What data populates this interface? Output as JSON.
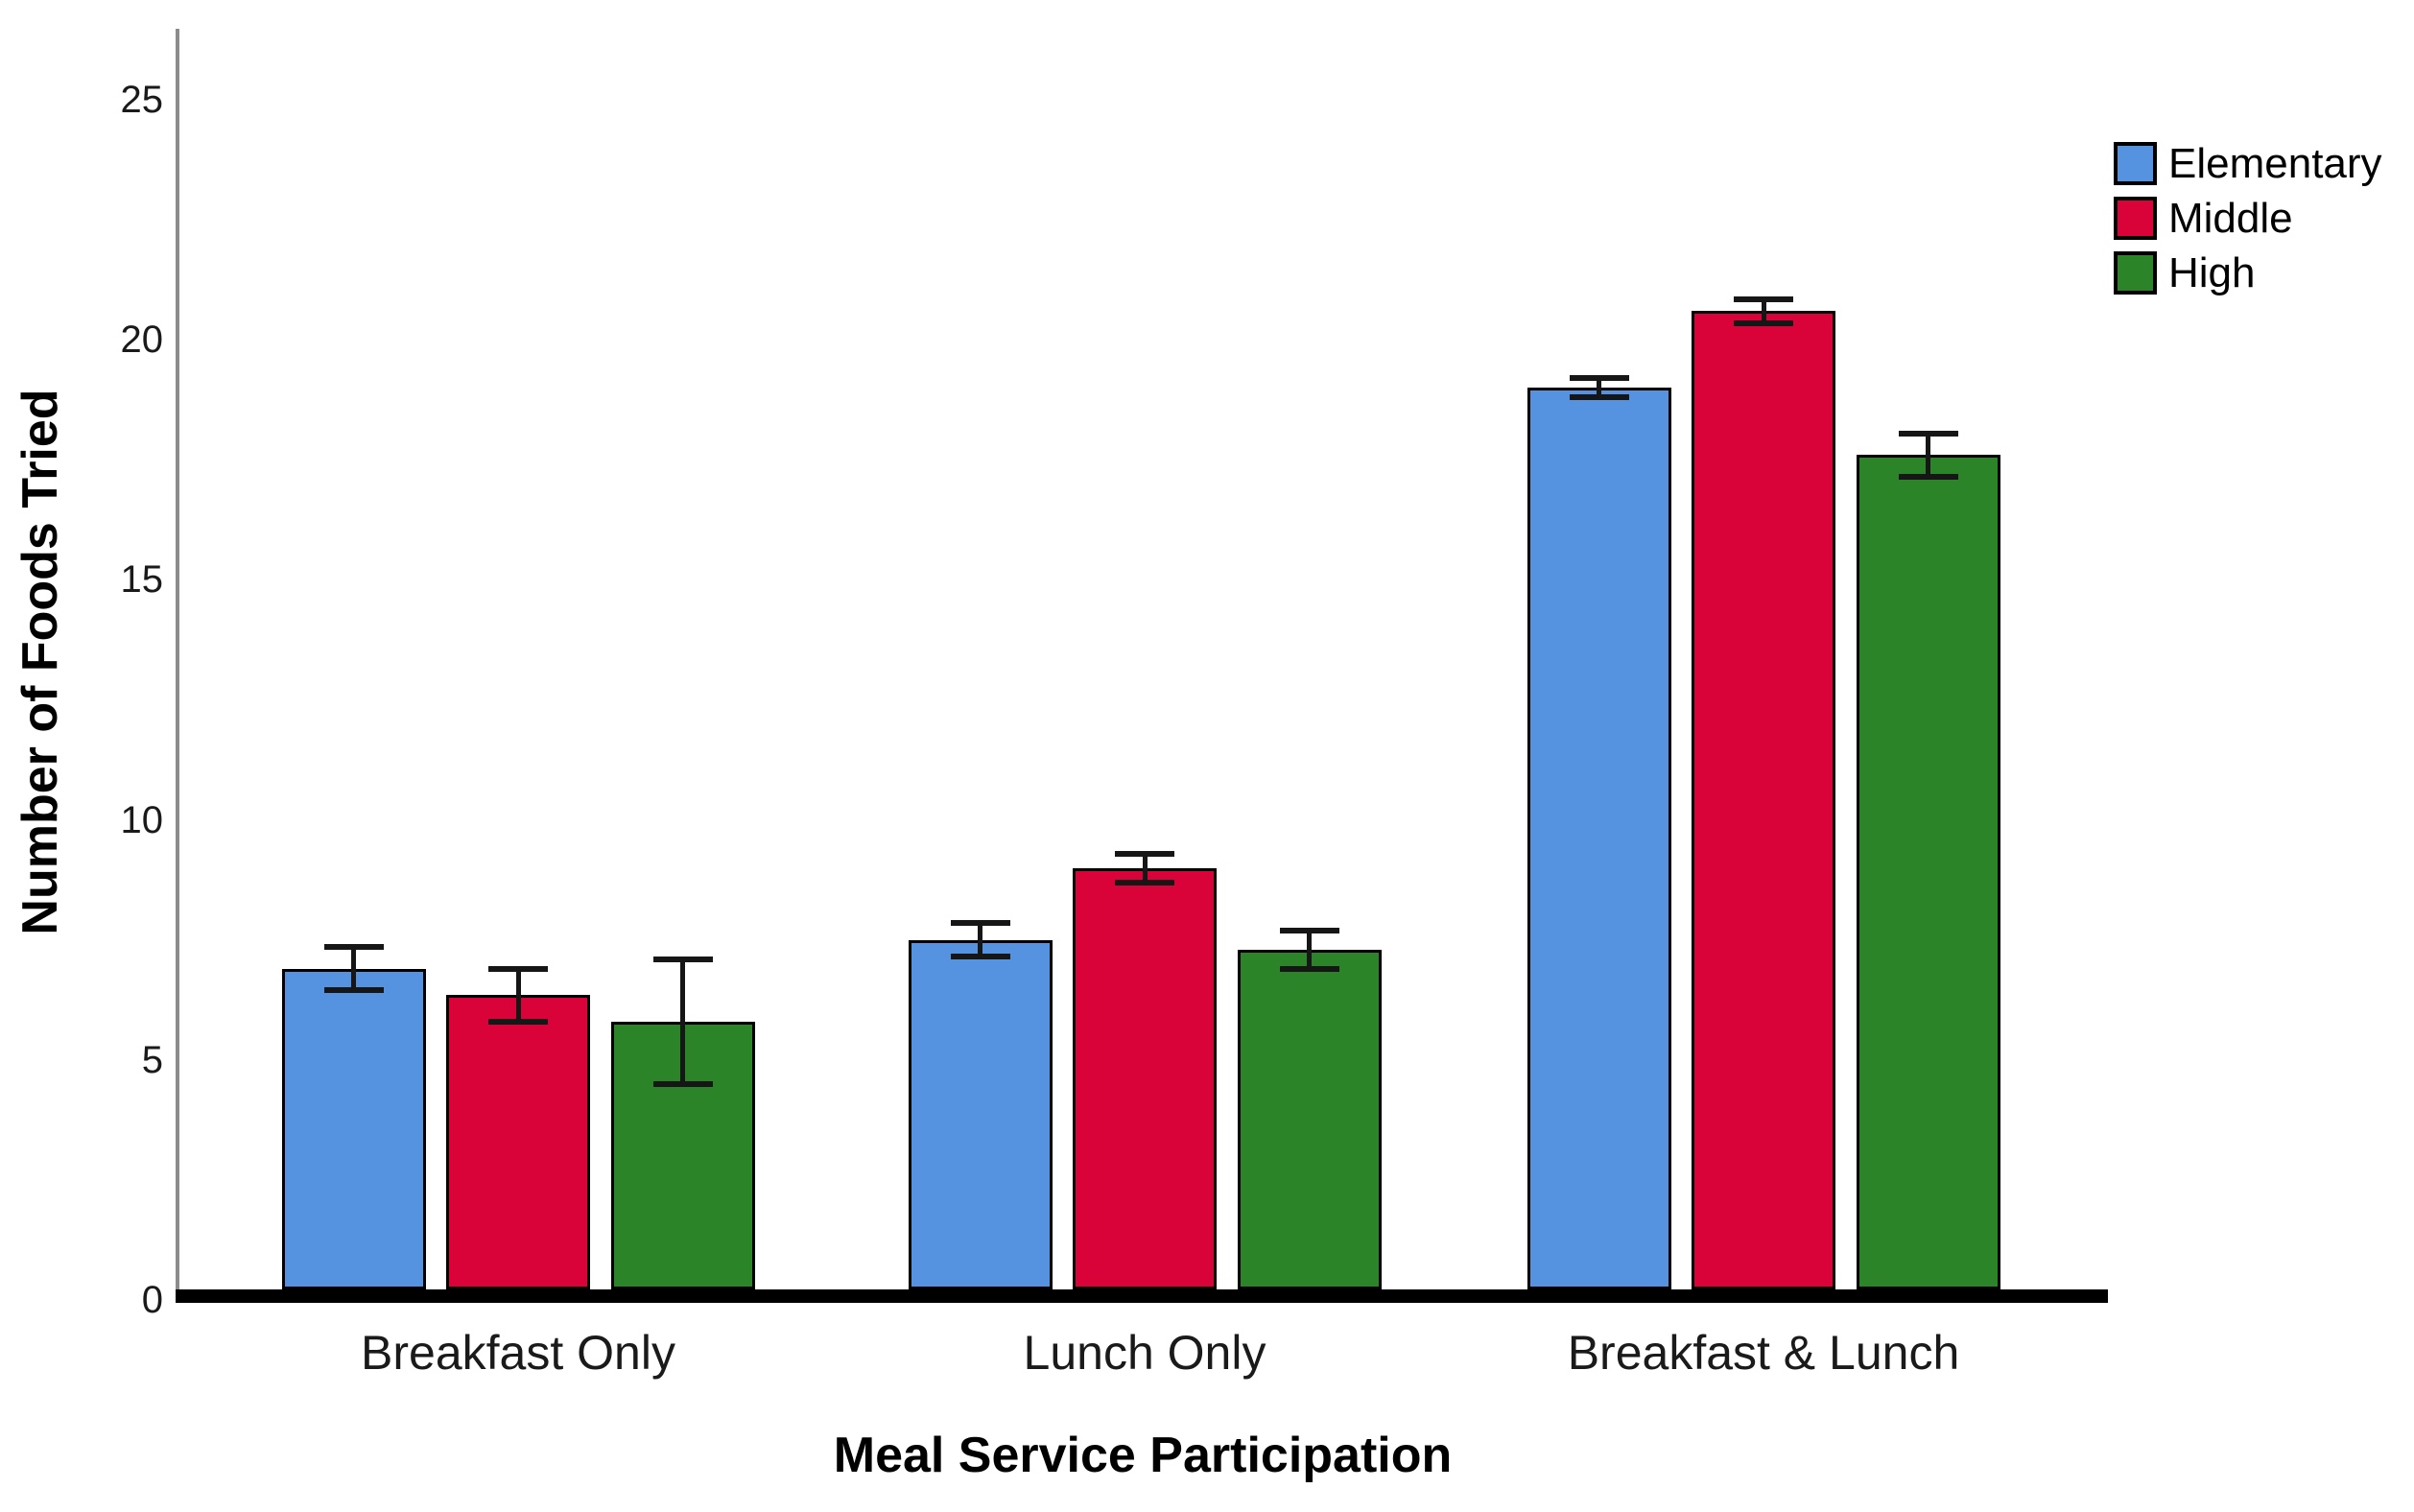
{
  "chart_data": {
    "type": "bar",
    "title": "",
    "xlabel": "Meal Service Participation",
    "ylabel": "Number of Foods Tried",
    "categories": [
      "Breakfast Only",
      "Lunch Only",
      "Breakfast & Lunch"
    ],
    "series": [
      {
        "name": "Elementary",
        "color": "#5592E0",
        "values": [
          6.9,
          7.5,
          19.0
        ],
        "errors": [
          0.45,
          0.35,
          0.2
        ]
      },
      {
        "name": "Middle",
        "color": "#D90239",
        "values": [
          6.35,
          9.0,
          20.6
        ],
        "errors": [
          0.55,
          0.3,
          0.25
        ]
      },
      {
        "name": "High",
        "color": "#2B8428",
        "values": [
          5.8,
          7.3,
          17.6
        ],
        "errors": [
          1.3,
          0.4,
          0.45
        ]
      }
    ],
    "ylim": [
      0,
      25
    ],
    "yticks": [
      0,
      5,
      10,
      15,
      20,
      25
    ],
    "grid": false,
    "error_bars": true,
    "legend_position": "top-right",
    "axis_color": "#8c8c8c",
    "baseline_color": "#000000",
    "bar_border_color": "#000000"
  }
}
